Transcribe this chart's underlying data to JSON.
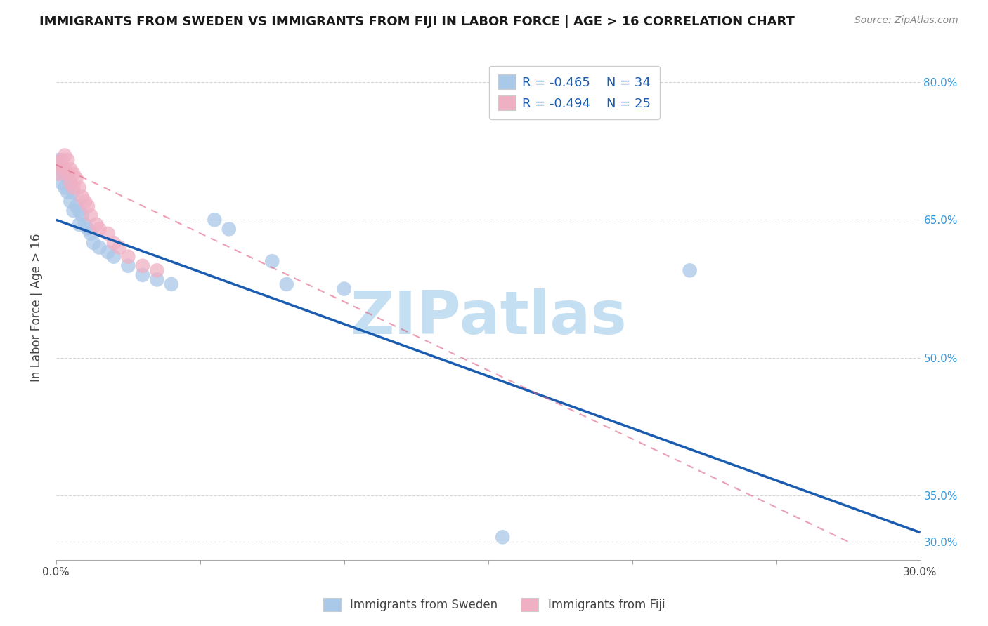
{
  "title": "IMMIGRANTS FROM SWEDEN VS IMMIGRANTS FROM FIJI IN LABOR FORCE | AGE > 16 CORRELATION CHART",
  "source": "Source: ZipAtlas.com",
  "ylabel": "In Labor Force | Age > 16",
  "xlim": [
    0.0,
    0.3
  ],
  "ylim": [
    0.28,
    0.83
  ],
  "xticks": [
    0.0,
    0.05,
    0.1,
    0.15,
    0.2,
    0.25,
    0.3
  ],
  "ytick_positions_right": [
    0.8,
    0.65,
    0.5,
    0.35,
    0.3
  ],
  "ytick_labels_right": [
    "80.0%",
    "65.0%",
    "50.0%",
    "35.0%",
    "30.0%"
  ],
  "legend_r1": "-0.465",
  "legend_n1": "34",
  "legend_r2": "-0.494",
  "legend_n2": "25",
  "color_sweden": "#aac8e8",
  "color_fiji": "#f0b0c4",
  "color_sweden_line": "#1a5cb0",
  "color_fiji_line": "#e06080",
  "watermark": "ZIPatlas",
  "sweden_x": [
    0.001,
    0.001,
    0.002,
    0.002,
    0.003,
    0.003,
    0.004,
    0.004,
    0.005,
    0.005,
    0.006,
    0.006,
    0.007,
    0.008,
    0.008,
    0.009,
    0.01,
    0.011,
    0.012,
    0.013,
    0.015,
    0.018,
    0.02,
    0.025,
    0.03,
    0.035,
    0.04,
    0.055,
    0.06,
    0.075,
    0.08,
    0.1,
    0.155,
    0.22
  ],
  "sweden_y": [
    0.715,
    0.7,
    0.705,
    0.69,
    0.7,
    0.685,
    0.695,
    0.68,
    0.69,
    0.67,
    0.68,
    0.66,
    0.665,
    0.66,
    0.645,
    0.655,
    0.645,
    0.64,
    0.635,
    0.625,
    0.62,
    0.615,
    0.61,
    0.6,
    0.59,
    0.585,
    0.58,
    0.65,
    0.64,
    0.605,
    0.58,
    0.575,
    0.305,
    0.595
  ],
  "fiji_x": [
    0.001,
    0.001,
    0.002,
    0.003,
    0.003,
    0.004,
    0.004,
    0.005,
    0.005,
    0.006,
    0.006,
    0.007,
    0.008,
    0.009,
    0.01,
    0.011,
    0.012,
    0.014,
    0.015,
    0.018,
    0.02,
    0.022,
    0.025,
    0.03,
    0.035
  ],
  "fiji_y": [
    0.71,
    0.7,
    0.715,
    0.72,
    0.705,
    0.715,
    0.7,
    0.705,
    0.69,
    0.7,
    0.685,
    0.695,
    0.685,
    0.675,
    0.67,
    0.665,
    0.655,
    0.645,
    0.64,
    0.635,
    0.625,
    0.62,
    0.61,
    0.6,
    0.595
  ],
  "sweden_line_x": [
    0.0,
    0.3
  ],
  "sweden_line_y": [
    0.65,
    0.31
  ],
  "fiji_line_x": [
    0.0,
    0.275
  ],
  "fiji_line_y": [
    0.71,
    0.3
  ],
  "background_color": "#ffffff",
  "grid_color": "#cccccc",
  "title_color": "#1a1a1a",
  "axis_label_color": "#444444",
  "right_tick_color": "#3399dd",
  "legend_r_color": "#1a5cb0",
  "watermark_color": "#c5dff2"
}
